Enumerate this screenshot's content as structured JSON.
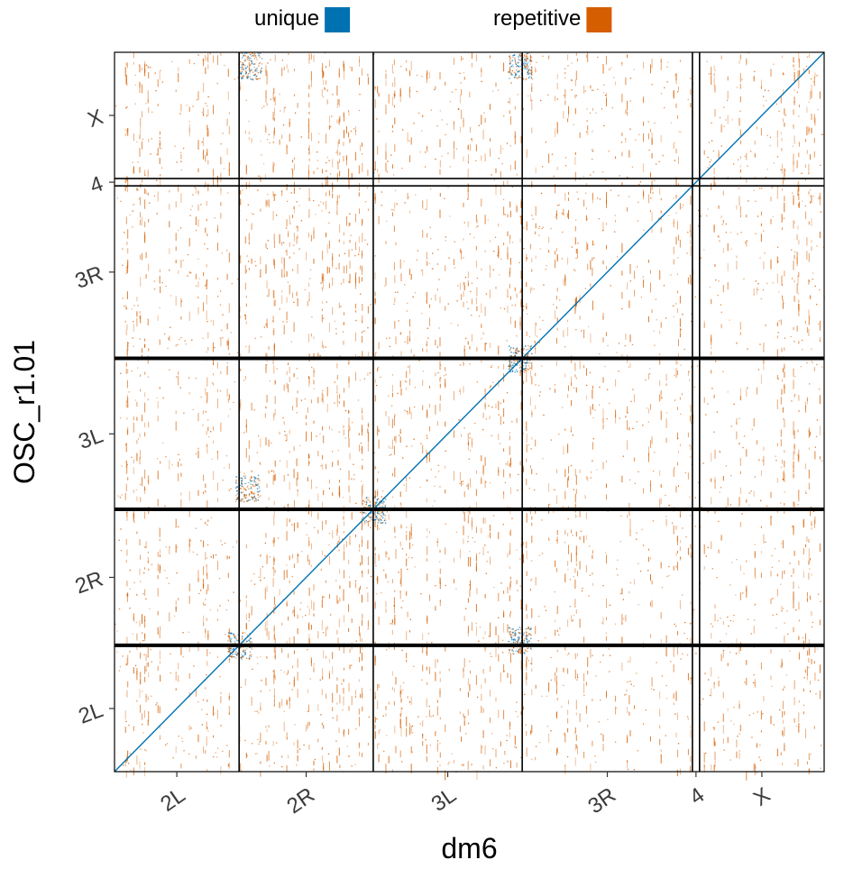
{
  "chart_data": {
    "type": "scatter",
    "subtype": "genome-dotplot",
    "xlabel": "dm6",
    "ylabel": "OSC_r1.01",
    "legend": {
      "placement": "top",
      "entries": [
        {
          "name": "unique",
          "color": "#0072B2"
        },
        {
          "name": "repetitive",
          "color": "#D55E00"
        }
      ]
    },
    "x_axis": {
      "chromosomes": [
        "2L",
        "2R",
        "3L",
        "3R",
        "4",
        "X"
      ],
      "lengths_mb": [
        23.5,
        25.3,
        28.1,
        32.1,
        1.35,
        23.5
      ]
    },
    "y_axis": {
      "chromosomes": [
        "2L",
        "2R",
        "3L",
        "3R",
        "4",
        "X"
      ],
      "lengths_mb": [
        23.5,
        25.3,
        28.1,
        32.1,
        1.35,
        23.5
      ]
    },
    "series": [
      {
        "name": "unique",
        "description": "main diagonal alignment",
        "x": [
          0,
          133.85
        ],
        "y": [
          0,
          133.85
        ]
      },
      {
        "name": "repetitive",
        "description": "off-diagonal repeat hits"
      }
    ],
    "grid": false
  }
}
